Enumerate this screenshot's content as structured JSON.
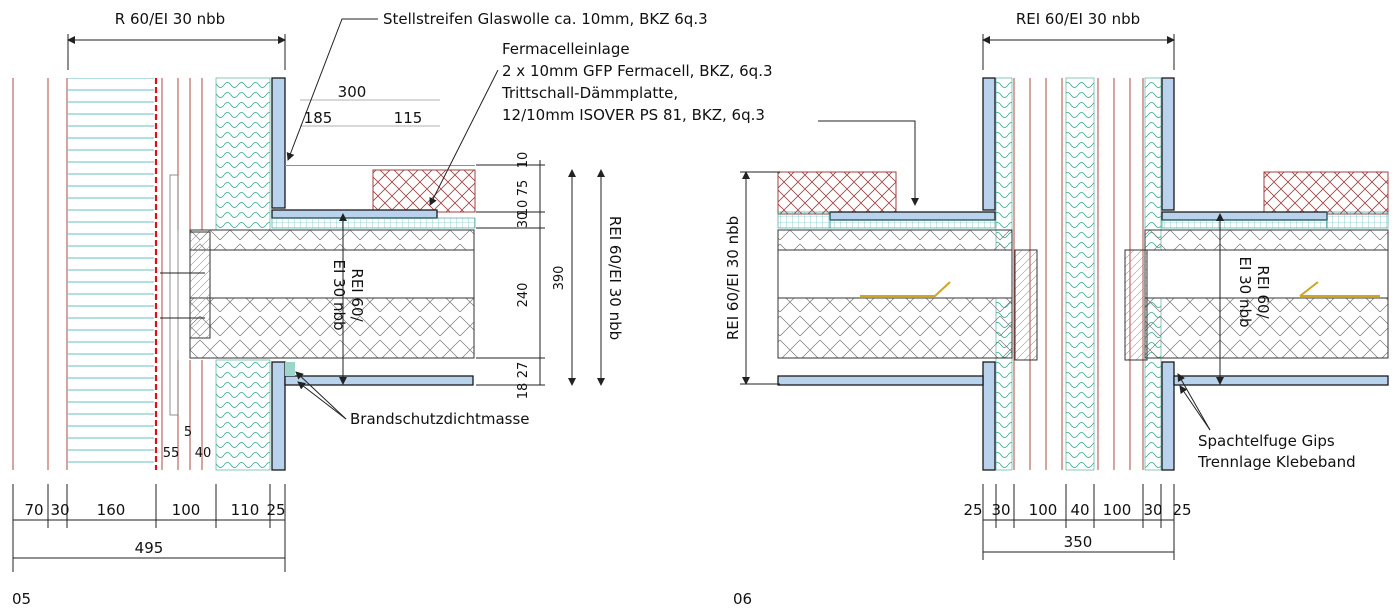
{
  "detail_05": {
    "label": "05",
    "top_title": "R 60/EI 30 nbb",
    "annotations": {
      "stellstreifen": "Stellstreifen Glaswolle ca. 10mm, BKZ 6q.3",
      "fermacell_1": "Fermacelleinlage",
      "fermacell_2": "2 x 10mm GFP Fermacell, BKZ, 6q.3",
      "tritt_1": "Trittschall-Dämmplatte,",
      "tritt_2": "12/10mm ISOVER PS 81, BKZ, 6q.3",
      "brandschutz": "Brandschutzdichtmasse"
    },
    "dims_top": [
      "300",
      "185",
      "115"
    ],
    "dims_right": [
      "10",
      "75",
      "10",
      "30",
      "240",
      "27",
      "18",
      "390"
    ],
    "rating_vertical_1": "REI 60/",
    "rating_vertical_2": "EI 30 nbb",
    "rating_right": "REI 60/EI 30 nbb",
    "small_dims": [
      "5",
      "55",
      "40"
    ],
    "dims_bottom": [
      "70",
      "30",
      "160",
      "100",
      "110",
      "25"
    ],
    "total_bottom": "495"
  },
  "detail_06": {
    "label": "06",
    "top_title": "REI 60/EI 30 nbb",
    "rating_left": "REI 60/EI 30 nbb",
    "rating_right_1": "REI 60/",
    "rating_right_2": "EI 30 nbb",
    "annotations": {
      "spachtel": "Spachtelfuge Gips",
      "trennlage": "Trennlage Klebeband"
    },
    "dims_bottom": [
      "25",
      "30",
      "100",
      "40",
      "100",
      "30",
      "25"
    ],
    "total_bottom": "350"
  }
}
